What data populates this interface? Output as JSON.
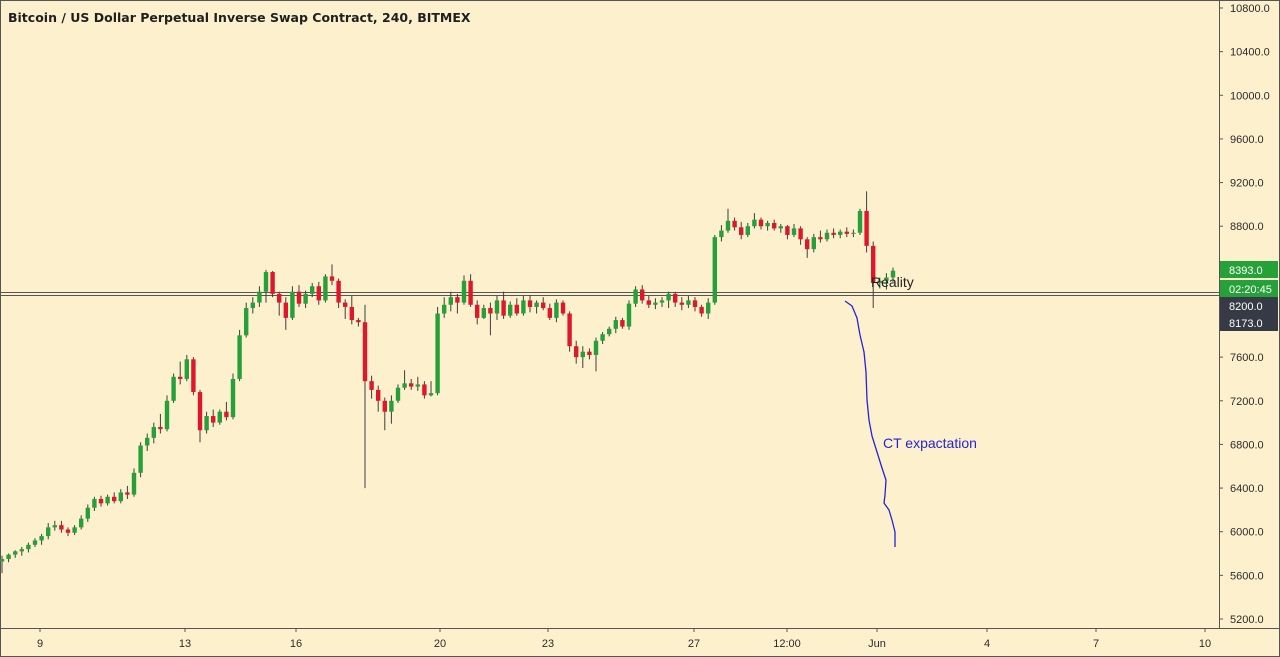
{
  "chart_title": "Bitcoin / US Dollar Perpetual Inverse Swap Contract, 240, BITMEX",
  "colors": {
    "background": "#fdf1cd",
    "up": "#26a13a",
    "down": "#e0162b",
    "wick": "#3d3d3d",
    "axis": "#555555",
    "level_line": "#555555",
    "drawing": "#2323d8",
    "price_badge": "#26a13a",
    "level_badge": "#363a45",
    "annotation_text": "#1f1f1f"
  },
  "price_scale": {
    "labels": [
      "10800.0",
      "10400.0",
      "10000.0",
      "9600.0",
      "9200.0",
      "8800.0",
      "7600.0",
      "7200.0",
      "6800.0",
      "6400.0",
      "6000.0",
      "5600.0",
      "5200.0"
    ],
    "badges": [
      {
        "text": "8393.0",
        "style": "price"
      },
      {
        "text": "02:20:45",
        "style": "price"
      },
      {
        "text": "8200.0",
        "style": "level"
      },
      {
        "text": "8173.0",
        "style": "level"
      }
    ]
  },
  "time_scale": {
    "labels": [
      "9",
      "13",
      "16",
      "20",
      "23",
      "27",
      "12:00",
      "Jun",
      "4",
      "7",
      "10"
    ]
  },
  "annotations": {
    "reality": "Reality",
    "ct_expectation": "CT expactation"
  },
  "chart_data": {
    "type": "candlestick",
    "title": "Bitcoin / US Dollar Perpetual Inverse Swap Contract, 240, BITMEX",
    "interval": "240",
    "exchange": "BITMEX",
    "x_range": [
      "May 7 20:00",
      "Jun 10 14:00"
    ],
    "y_range": [
      5100,
      10900
    ],
    "horizontal_levels": [
      8200,
      8173
    ],
    "last_price": 8393.0,
    "countdown": "02:20:45",
    "candles": [
      [
        5727,
        5780,
        5620,
        5750
      ],
      [
        5750,
        5800,
        5720,
        5790
      ],
      [
        5790,
        5830,
        5760,
        5820
      ],
      [
        5820,
        5860,
        5780,
        5840
      ],
      [
        5840,
        5900,
        5810,
        5880
      ],
      [
        5880,
        5940,
        5860,
        5920
      ],
      [
        5920,
        5980,
        5880,
        5960
      ],
      [
        5960,
        6080,
        5930,
        6040
      ],
      [
        6040,
        6100,
        6010,
        6060
      ],
      [
        6060,
        6100,
        5990,
        6020
      ],
      [
        6020,
        6040,
        5960,
        5990
      ],
      [
        5990,
        6060,
        5970,
        6040
      ],
      [
        6040,
        6150,
        6020,
        6120
      ],
      [
        6120,
        6250,
        6090,
        6220
      ],
      [
        6220,
        6320,
        6190,
        6300
      ],
      [
        6300,
        6330,
        6230,
        6260
      ],
      [
        6260,
        6340,
        6240,
        6320
      ],
      [
        6320,
        6360,
        6260,
        6280
      ],
      [
        6280,
        6390,
        6260,
        6360
      ],
      [
        6360,
        6420,
        6300,
        6340
      ],
      [
        6340,
        6580,
        6320,
        6540
      ],
      [
        6540,
        6820,
        6500,
        6790
      ],
      [
        6790,
        6900,
        6740,
        6860
      ],
      [
        6860,
        7000,
        6810,
        6960
      ],
      [
        6960,
        7080,
        6900,
        6940
      ],
      [
        6940,
        7250,
        6920,
        7200
      ],
      [
        7200,
        7450,
        7180,
        7420
      ],
      [
        7420,
        7560,
        7350,
        7400
      ],
      [
        7400,
        7620,
        7380,
        7580
      ],
      [
        7580,
        7600,
        7250,
        7280
      ],
      [
        7280,
        7300,
        6820,
        6930
      ],
      [
        6930,
        7100,
        6900,
        7060
      ],
      [
        7060,
        7120,
        6960,
        7000
      ],
      [
        7000,
        7120,
        6980,
        7100
      ],
      [
        7100,
        7190,
        7020,
        7050
      ],
      [
        7050,
        7450,
        7030,
        7400
      ],
      [
        7400,
        7850,
        7380,
        7800
      ],
      [
        7800,
        8100,
        7780,
        8050
      ],
      [
        8050,
        8150,
        8000,
        8100
      ],
      [
        8100,
        8250,
        8060,
        8200
      ],
      [
        8200,
        8400,
        8100,
        8380
      ],
      [
        8380,
        8390,
        8150,
        8180
      ],
      [
        8180,
        8200,
        7980,
        8100
      ],
      [
        8100,
        8150,
        7850,
        7960
      ],
      [
        7960,
        8250,
        7940,
        8200
      ],
      [
        8200,
        8260,
        8060,
        8090
      ],
      [
        8090,
        8210,
        8050,
        8180
      ],
      [
        8180,
        8280,
        8150,
        8250
      ],
      [
        8250,
        8290,
        8080,
        8120
      ],
      [
        8120,
        8360,
        8100,
        8340
      ],
      [
        8340,
        8450,
        8260,
        8300
      ],
      [
        8300,
        8320,
        8050,
        8100
      ],
      [
        8100,
        8130,
        7950,
        8060
      ],
      [
        8060,
        8160,
        7900,
        7940
      ],
      [
        7940,
        7960,
        7880,
        7920
      ],
      [
        7920,
        8080,
        6400,
        7380
      ],
      [
        7380,
        7430,
        7220,
        7300
      ],
      [
        7300,
        7340,
        7100,
        7200
      ],
      [
        7200,
        7230,
        6930,
        7100
      ],
      [
        7100,
        7250,
        6990,
        7200
      ],
      [
        7200,
        7350,
        7180,
        7320
      ],
      [
        7320,
        7480,
        7300,
        7360
      ],
      [
        7360,
        7400,
        7300,
        7330
      ],
      [
        7330,
        7420,
        7290,
        7350
      ],
      [
        7350,
        7380,
        7220,
        7250
      ],
      [
        7250,
        7380,
        7240,
        7270
      ],
      [
        7270,
        8060,
        7250,
        8000
      ],
      [
        8000,
        8150,
        7960,
        8080
      ],
      [
        8080,
        8200,
        8020,
        8150
      ],
      [
        8150,
        8180,
        8000,
        8100
      ],
      [
        8100,
        8350,
        8080,
        8300
      ],
      [
        8300,
        8360,
        8060,
        8080
      ],
      [
        8080,
        8120,
        7900,
        7960
      ],
      [
        7960,
        8080,
        7950,
        8050
      ],
      [
        8050,
        8100,
        7800,
        8000
      ],
      [
        8000,
        8160,
        7940,
        8120
      ],
      [
        8120,
        8200,
        7950,
        7980
      ],
      [
        7980,
        8110,
        7960,
        8080
      ],
      [
        8080,
        8140,
        7980,
        8000
      ],
      [
        8000,
        8160,
        7980,
        8120
      ],
      [
        8120,
        8170,
        8010,
        8060
      ],
      [
        8060,
        8120,
        8000,
        8100
      ],
      [
        8100,
        8150,
        8030,
        8050
      ],
      [
        8050,
        8090,
        7940,
        7960
      ],
      [
        7960,
        8130,
        7920,
        8100
      ],
      [
        8100,
        8120,
        7980,
        8000
      ],
      [
        8000,
        8020,
        7650,
        7700
      ],
      [
        7700,
        7750,
        7540,
        7600
      ],
      [
        7600,
        7700,
        7500,
        7650
      ],
      [
        7650,
        7680,
        7580,
        7620
      ],
      [
        7620,
        7780,
        7470,
        7750
      ],
      [
        7750,
        7830,
        7720,
        7810
      ],
      [
        7810,
        7880,
        7790,
        7860
      ],
      [
        7860,
        7970,
        7820,
        7940
      ],
      [
        7940,
        7960,
        7860,
        7880
      ],
      [
        7880,
        8120,
        7850,
        8090
      ],
      [
        8090,
        8250,
        8060,
        8220
      ],
      [
        8220,
        8260,
        8090,
        8120
      ],
      [
        8120,
        8160,
        8050,
        8080
      ],
      [
        8080,
        8140,
        8040,
        8100
      ],
      [
        8100,
        8150,
        8060,
        8120
      ],
      [
        8120,
        8200,
        8050,
        8180
      ],
      [
        8180,
        8200,
        8060,
        8100
      ],
      [
        8100,
        8150,
        8030,
        8080
      ],
      [
        8080,
        8160,
        8050,
        8120
      ],
      [
        8120,
        8150,
        8020,
        8060
      ],
      [
        8060,
        8080,
        7970,
        8000
      ],
      [
        8000,
        8140,
        7950,
        8100
      ],
      [
        8100,
        8720,
        8080,
        8700
      ],
      [
        8700,
        8810,
        8660,
        8760
      ],
      [
        8760,
        8960,
        8740,
        8850
      ],
      [
        8850,
        8880,
        8760,
        8790
      ],
      [
        8790,
        8840,
        8680,
        8720
      ],
      [
        8720,
        8830,
        8700,
        8800
      ],
      [
        8800,
        8920,
        8780,
        8860
      ],
      [
        8860,
        8880,
        8770,
        8800
      ],
      [
        8800,
        8850,
        8760,
        8830
      ],
      [
        8830,
        8860,
        8760,
        8780
      ],
      [
        8780,
        8820,
        8740,
        8800
      ],
      [
        8800,
        8810,
        8680,
        8720
      ],
      [
        8720,
        8820,
        8700,
        8780
      ],
      [
        8780,
        8800,
        8630,
        8680
      ],
      [
        8680,
        8700,
        8510,
        8590
      ],
      [
        8590,
        8730,
        8560,
        8700
      ],
      [
        8700,
        8760,
        8650,
        8680
      ],
      [
        8680,
        8770,
        8660,
        8740
      ],
      [
        8740,
        8780,
        8690,
        8720
      ],
      [
        8720,
        8770,
        8690,
        8750
      ],
      [
        8750,
        8790,
        8700,
        8730
      ],
      [
        8730,
        8770,
        8700,
        8740
      ],
      [
        8740,
        8960,
        8720,
        8940
      ],
      [
        8940,
        9120,
        8560,
        8620
      ],
      [
        8620,
        8660,
        8050,
        8280
      ],
      [
        8280,
        8330,
        8230,
        8300
      ],
      [
        8300,
        8370,
        8220,
        8330
      ],
      [
        8330,
        8420,
        8290,
        8393
      ]
    ]
  }
}
